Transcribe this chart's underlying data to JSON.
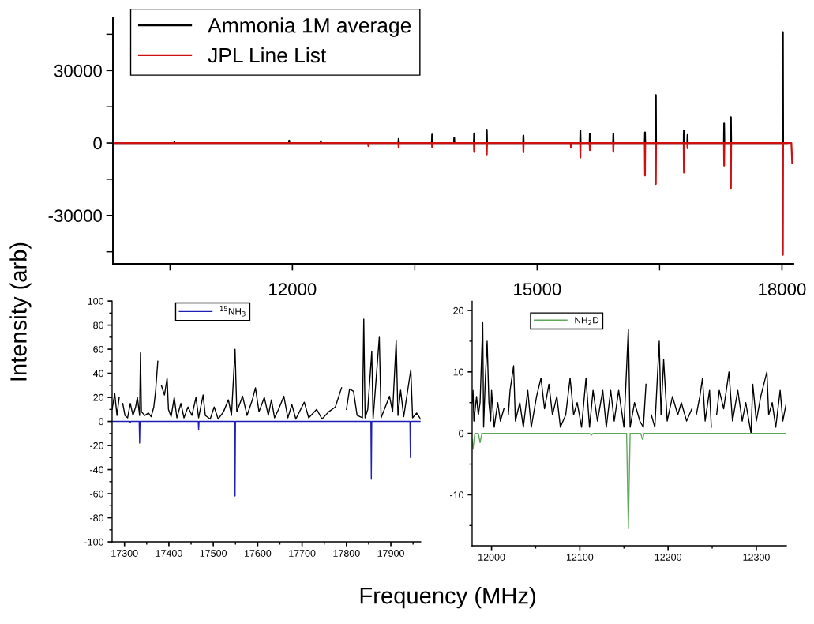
{
  "chart_data": [
    {
      "type": "line",
      "xlabel": "Frequency (MHz)",
      "ylabel": "Intensity (arb)",
      "legend": "top left",
      "xlim": [
        9800,
        18140
      ],
      "ylim": [
        -50000,
        52000
      ],
      "xticks": [
        {
          "value": 10500,
          "label": null
        },
        12000,
        {
          "value": 13500,
          "label": null
        },
        15000,
        {
          "value": 16500,
          "label": null
        },
        18000
      ],
      "yticks": [
        {
          "value": -45000,
          "label": null
        },
        -30000,
        {
          "value": -15000,
          "label": null
        },
        0,
        {
          "value": 15000,
          "label": null
        },
        30000,
        {
          "value": 45000,
          "label": null
        }
      ],
      "series": [
        {
          "name": "Ammonia 1M average",
          "color": "#000000",
          "x": [
            9810,
            10551,
            10554,
            10557,
            11958,
            11961,
            11964,
            12346,
            12349,
            12352,
            13299,
            13302,
            13305,
            13709,
            13712,
            13715,
            13980,
            13983,
            13986,
            14224,
            14227,
            14230,
            14379,
            14382,
            14385,
            14828,
            14831,
            14834,
            15526,
            15529,
            15532,
            15642,
            15645,
            15648,
            15930,
            15933,
            15936,
            16318,
            16321,
            16324,
            16451,
            16454,
            16457,
            16795,
            16798,
            16801,
            16839,
            16842,
            16845,
            17288,
            17291,
            17294,
            17371,
            17374,
            17377,
            18008,
            18011,
            18014,
            18060
          ],
          "values": [
            0,
            0,
            500,
            0,
            0,
            1000,
            0,
            0,
            800,
            0,
            0,
            1700,
            0,
            0,
            3500,
            0,
            0,
            2200,
            0,
            0,
            4000,
            0,
            0,
            5500,
            0,
            0,
            3100,
            0,
            0,
            5200,
            0,
            0,
            3900,
            0,
            0,
            3900,
            0,
            0,
            4400,
            0,
            0,
            19800,
            0,
            0,
            5200,
            0,
            0,
            3300,
            0,
            0,
            8100,
            0,
            0,
            10700,
            0,
            0,
            45900,
            0,
            0
          ]
        },
        {
          "name": "JPL Line List",
          "color": "#d01010",
          "x": [
            9810,
            12928,
            12931,
            12934,
            13299,
            13302,
            13305,
            13709,
            13712,
            13715,
            14224,
            14227,
            14230,
            14379,
            14382,
            14385,
            14828,
            14831,
            14834,
            15410,
            15413,
            15416,
            15526,
            15529,
            15532,
            15642,
            15645,
            15648,
            15930,
            15933,
            15936,
            16318,
            16321,
            16324,
            16451,
            16454,
            16457,
            16795,
            16798,
            16801,
            16839,
            16842,
            16845,
            17288,
            17291,
            17294,
            17371,
            17374,
            17377,
            18008,
            18011,
            18014,
            18115,
            18125
          ],
          "values": [
            0,
            0,
            -1300,
            0,
            0,
            -2000,
            0,
            0,
            -1800,
            0,
            0,
            -3700,
            0,
            0,
            -4800,
            0,
            0,
            -3900,
            0,
            0,
            -2000,
            0,
            0,
            -6100,
            0,
            0,
            -3000,
            0,
            0,
            -3700,
            0,
            0,
            -13500,
            0,
            0,
            -17000,
            0,
            0,
            -12200,
            0,
            0,
            -2200,
            0,
            0,
            -9400,
            0,
            0,
            -18700,
            0,
            0,
            -46300,
            0,
            0,
            -8300
          ]
        }
      ]
    },
    {
      "type": "line",
      "legend": "top",
      "xlim": [
        17272,
        17967
      ],
      "ylim": [
        -100,
        100
      ],
      "xticks": [
        17300,
        {
          "value": 17350,
          "label": null
        },
        17400,
        {
          "value": 17450,
          "label": null
        },
        17500,
        {
          "value": 17550,
          "label": null
        },
        17600,
        {
          "value": 17650,
          "label": null
        },
        17700,
        {
          "value": 17750,
          "label": null
        },
        17800,
        {
          "value": 17850,
          "label": null
        },
        17900,
        {
          "value": 17950,
          "label": null
        }
      ],
      "yticks": [
        -100,
        {
          "value": -90,
          "label": null
        },
        -80,
        {
          "value": -70,
          "label": null
        },
        -60,
        {
          "value": -50,
          "label": null
        },
        -40,
        {
          "value": -30,
          "label": null
        },
        -20,
        {
          "value": -10,
          "label": null
        },
        0,
        {
          "value": 10,
          "label": null
        },
        20,
        {
          "value": 30,
          "label": null
        },
        40,
        {
          "value": 50,
          "label": null
        },
        60,
        {
          "value": 70,
          "label": null
        },
        80,
        {
          "value": 90,
          "label": null
        },
        100
      ],
      "series": [
        {
          "color": "#000000",
          "x": [
            17272,
            17278,
            17283,
            17288,
            17291,
            17293,
            17296,
            17301,
            17307,
            17313,
            17319,
            17325,
            17329,
            17334,
            17336,
            17338,
            17346,
            17354,
            17360,
            17366,
            17370,
            17375,
            17377,
            17380,
            17383,
            17390,
            17396,
            17399,
            17405,
            17412,
            17418,
            17427,
            17434,
            17443,
            17452,
            17461,
            17467,
            17477,
            17482,
            17493,
            17502,
            17511,
            17523,
            17534,
            17541,
            17549,
            17553,
            17566,
            17576,
            17588,
            17595,
            17603,
            17615,
            17624,
            17631,
            17638,
            17647,
            17659,
            17668,
            17677,
            17686,
            17705,
            17715,
            17733,
            17745,
            17760,
            17775,
            17789,
            17796,
            17800,
            17807,
            17816,
            17824,
            17836,
            17839,
            17842,
            17848,
            17857,
            17860,
            17874,
            17878,
            17897,
            17904,
            17912,
            17916,
            17922,
            17929,
            17945,
            17949,
            17958,
            17967
          ],
          "values": [
            10,
            23,
            5,
            20,
            null,
            null,
            15,
            5,
            3,
            15,
            5,
            12,
            20,
            5,
            57,
            8,
            5,
            7,
            4,
            12,
            25,
            50,
            null,
            null,
            30,
            22,
            36,
            10,
            4,
            20,
            3,
            15,
            3,
            12,
            5,
            20,
            3,
            22,
            5,
            2,
            12,
            2,
            8,
            18,
            5,
            60,
            8,
            21,
            5,
            18,
            28,
            8,
            20,
            5,
            18,
            3,
            10,
            21,
            3,
            14,
            2,
            16,
            3,
            10,
            2,
            8,
            12,
            28,
            null,
            10,
            27,
            25,
            5,
            3,
            85,
            3,
            10,
            58,
            2,
            70,
            3,
            21,
            8,
            67,
            5,
            26,
            4,
            43,
            3,
            7,
            2
          ]
        },
        {
          "name": "$^{15}$NH$_{3}$",
          "color": "#1f1fb4",
          "x": [
            17272,
            17312,
            17313,
            17314,
            17333,
            17334,
            17335,
            17466,
            17467,
            17468,
            17548,
            17549,
            17550,
            17855,
            17856,
            17857,
            17943,
            17944,
            17945,
            17967
          ],
          "values": [
            0,
            0,
            -1,
            0,
            0,
            -18,
            0,
            0,
            -7,
            0,
            0,
            -62,
            0,
            0,
            -48,
            0,
            0,
            -30,
            0,
            0
          ]
        }
      ]
    },
    {
      "type": "line",
      "legend": "top",
      "xlim": [
        11978,
        12334
      ],
      "ylim": [
        -18.3,
        21.5
      ],
      "xticks": [
        12000,
        {
          "value": 12050,
          "label": null
        },
        12100,
        {
          "value": 12150,
          "label": null
        },
        12200,
        {
          "value": 12250,
          "label": null
        },
        12300
      ],
      "yticks": [
        {
          "value": -15,
          "label": null
        },
        -10,
        {
          "value": -5,
          "label": null
        },
        0,
        {
          "value": 5,
          "label": null
        },
        10,
        {
          "value": 15,
          "label": null
        },
        20
      ],
      "series": [
        {
          "color": "#000000",
          "x": [
            11978,
            11979,
            11980,
            11983,
            11985,
            11987,
            11990,
            11991,
            11993,
            11995,
            11997,
            11999,
            12000,
            12003,
            12007,
            12010,
            12014,
            12017,
            12019,
            12021,
            12025,
            12027,
            12032,
            12036,
            12041,
            12045,
            12051,
            12056,
            12060,
            12065,
            12069,
            12074,
            12078,
            12084,
            12089,
            12093,
            12097,
            12102,
            12107,
            12111,
            12115,
            12120,
            12126,
            12130,
            12135,
            12139,
            12144,
            12150,
            12155,
            12157,
            12162,
            12168,
            12172,
            12175,
            12179,
            12181,
            12185,
            12190,
            12192,
            12195,
            12199,
            12205,
            12211,
            12215,
            12221,
            12227,
            12230,
            12232,
            12236,
            12239,
            12242,
            12247,
            12249,
            12251,
            12253,
            12255,
            12258,
            12263,
            12269,
            12273,
            12279,
            12284,
            12288,
            12294,
            12296,
            12300,
            12305,
            12312,
            12314,
            12318,
            12322,
            12327,
            12330,
            12334
          ],
          "values": [
            5,
            7,
            2,
            6,
            3,
            5,
            18,
            1,
            9,
            15,
            5,
            2,
            7,
            1,
            5,
            2,
            4,
            null,
            3,
            7,
            11,
            2,
            5,
            1,
            7,
            1,
            6,
            9,
            4,
            8,
            3,
            6,
            1,
            3,
            9,
            3,
            5,
            1,
            9,
            1,
            7,
            2,
            7,
            1,
            7,
            2,
            7,
            1,
            17,
            1,
            5,
            2,
            1,
            8,
            null,
            3,
            1,
            15,
            3,
            12,
            2,
            6,
            3,
            5,
            2,
            4,
            null,
            3,
            6,
            9,
            2,
            7,
            1,
            null,
            null,
            3,
            7,
            4,
            10,
            2,
            7,
            2,
            5,
            0,
            8,
            2,
            6,
            10,
            3,
            5,
            1,
            7,
            2,
            5
          ]
        },
        {
          "name": "NH$_{2}$D",
          "color": "#5fa85f",
          "x": [
            11978,
            11979,
            11981,
            11985,
            11987,
            11989,
            12111,
            12113,
            12115,
            12153,
            12155,
            12157,
            12169,
            12171,
            12173,
            12334
          ],
          "values": [
            -1,
            -2.6,
            0,
            0,
            -1.5,
            0,
            0,
            -0.3,
            0,
            0,
            -15.5,
            0,
            0,
            -1,
            0,
            0
          ]
        }
      ]
    }
  ]
}
